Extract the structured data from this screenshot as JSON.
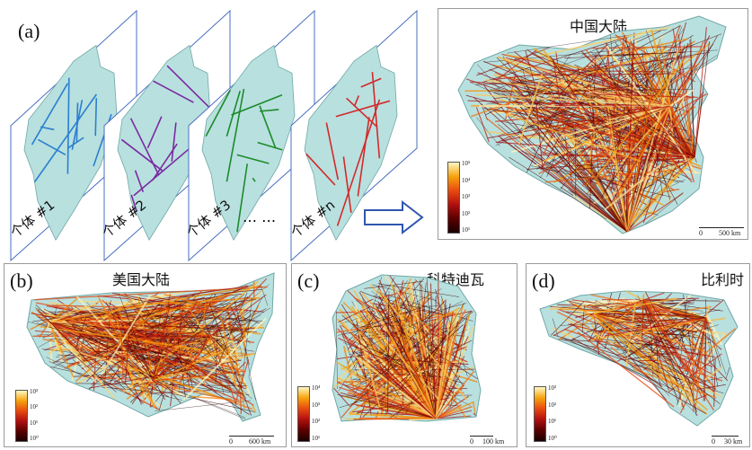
{
  "panel_a": {
    "label": "(a)",
    "slices": [
      {
        "label": "个体 #1",
        "color": "#2a7fd0"
      },
      {
        "label": "个体 #2",
        "color": "#7a2aa0"
      },
      {
        "label": "个体 #3",
        "color": "#1c8a2a"
      },
      {
        "label": "个体 #n",
        "color": "#d22a2a"
      }
    ],
    "ellipsis": "… …",
    "map_title": "中国大陆",
    "legend_ticks": [
      "10⁵",
      "10⁴",
      "10³",
      "10²",
      "10¹"
    ],
    "scale": {
      "start": "0",
      "end": "500 km"
    }
  },
  "panel_b": {
    "label": "(b)",
    "title": "美国大陆",
    "legend_ticks": [
      "10³",
      "10²",
      "10¹",
      "10⁰"
    ],
    "scale": {
      "start": "0",
      "end": "600 km"
    }
  },
  "panel_c": {
    "label": "(c)",
    "title": "科特迪瓦",
    "legend_ticks": [
      "10⁴",
      "10³",
      "10²",
      "10¹"
    ],
    "scale": {
      "start": "0",
      "end": "100 km"
    }
  },
  "panel_d": {
    "label": "(d)",
    "title": "比利时",
    "legend_ticks": [
      "10³",
      "10²",
      "10¹",
      "10⁰"
    ],
    "scale": {
      "start": "0",
      "end": "30 km"
    }
  },
  "colors": {
    "land": "#b8e0df",
    "land_edge": "#6fa8a6",
    "frame": "#4a6fc0",
    "arrow": "#2f56b0"
  }
}
